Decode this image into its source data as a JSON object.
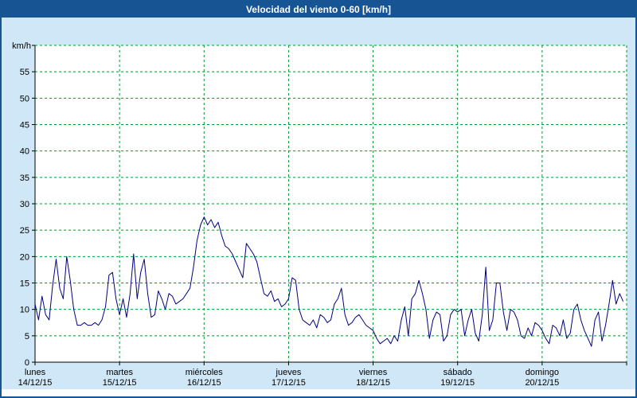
{
  "window": {
    "title": "Velocidad del viento 0-60 [km/h]"
  },
  "colors": {
    "frame_border": "#175494",
    "title_bg": "#175494",
    "title_text": "#ffffff",
    "background": "#cfe7f6",
    "plot_bg": "#ffffff",
    "grid": "#009933",
    "line": "#000080",
    "axis": "#000000",
    "text": "#000000"
  },
  "chart_data": {
    "type": "line",
    "title": "Velocidad del viento 0-60 [km/h]",
    "ylabel": "km/h",
    "xlabel": "",
    "ylim": [
      0,
      60
    ],
    "ytick_step": 5,
    "yticks": [
      0,
      5,
      10,
      15,
      20,
      25,
      30,
      35,
      40,
      45,
      50,
      55
    ],
    "grid": "dashed-green",
    "legend": "none",
    "points_per_day": 24,
    "days": [
      {
        "name": "lunes",
        "date": "14/12/15",
        "values": [
          11,
          8,
          12.5,
          9,
          8,
          14.5,
          19.5,
          14,
          12,
          20,
          15.5,
          10,
          7,
          7,
          7.5,
          7,
          7,
          7.5,
          7,
          8,
          10.5,
          16.5,
          17,
          12
        ]
      },
      {
        "name": "martes",
        "date": "15/12/15",
        "values": [
          9,
          12,
          8.5,
          13,
          20.5,
          12,
          17,
          19.5,
          13,
          8.5,
          9,
          13.5,
          12,
          10,
          13,
          12.5,
          11,
          11.5,
          12,
          13,
          14,
          18,
          23,
          26
        ]
      },
      {
        "name": "miércoles",
        "date": "16/12/15",
        "values": [
          27.5,
          26,
          27,
          25.5,
          26.5,
          24,
          22,
          21.5,
          20.5,
          19,
          17.5,
          16,
          22.5,
          21.5,
          20.5,
          19,
          16,
          13,
          12.5,
          13.5,
          11.5,
          12,
          10.5,
          11
        ]
      },
      {
        "name": "jueves",
        "date": "17/12/15",
        "values": [
          12,
          16,
          15.5,
          10,
          8,
          7.5,
          7,
          8,
          6.5,
          9,
          8.5,
          7.5,
          8,
          11,
          12,
          14,
          9,
          7,
          7.5,
          8.5,
          9,
          8,
          7,
          6.5
        ]
      },
      {
        "name": "viernes",
        "date": "18/12/15",
        "values": [
          6,
          4.5,
          3.5,
          4,
          4.5,
          3.5,
          5,
          4,
          8,
          10.5,
          5,
          12,
          13,
          15.5,
          13,
          10,
          4.5,
          8,
          9.5,
          9,
          4,
          5,
          9,
          10
        ]
      },
      {
        "name": "sábado",
        "date": "19/12/15",
        "values": [
          9.5,
          10,
          5,
          8,
          10,
          5.5,
          4,
          9,
          18,
          6,
          8,
          15,
          15,
          9.5,
          6,
          10,
          9.5,
          8,
          5,
          4.5,
          6.5,
          5,
          7.5,
          7
        ]
      },
      {
        "name": "domingo",
        "date": "20/12/15",
        "values": [
          6,
          4.5,
          3.5,
          7,
          6.5,
          5,
          8,
          4.5,
          5.5,
          10,
          11,
          8,
          6,
          4.5,
          3,
          8,
          9.5,
          4,
          7,
          11,
          15.5,
          11,
          13,
          11.5
        ]
      }
    ]
  }
}
